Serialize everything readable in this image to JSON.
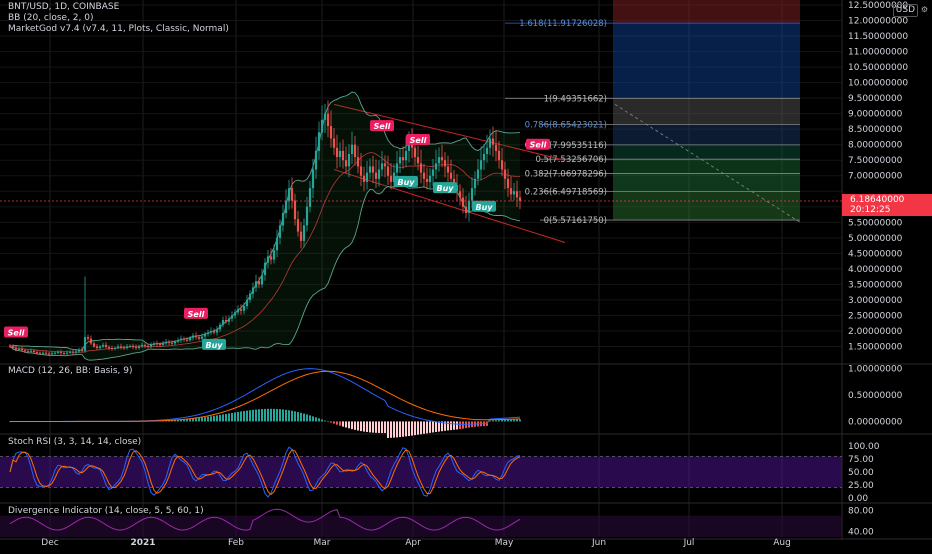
{
  "header": {
    "symbol_line": "BNT/USD, 1D, COINBASE",
    "bb_line": "BB (20, close, 2, 0)",
    "marketgod_line": "MarketGod v7.4 (v7.4, 11, Plots, Classic, Normal)",
    "currency": "USD"
  },
  "panes": {
    "macd_label": "MACD (12, 26, BB: Basis, 9)",
    "stoch_label": "Stoch RSI (3, 3, 14, 14, close)",
    "div_label": "Divergence Indicator (14, close, 5, 5, 60, 1)"
  },
  "colors": {
    "up": "#26a69a",
    "down": "#ef5350",
    "bb": "#5aa58c",
    "signal_sell": "#e91e63",
    "signal_buy": "#26a69a",
    "macd_line": "#2962ff",
    "signal_line": "#ff6d00",
    "stoch_k": "#2962ff",
    "stoch_d": "#ff6d00",
    "stoch_band": "#4a148c",
    "div_line": "#9c27b0",
    "current_price": "#f23645"
  },
  "chart_data": {
    "type": "candlestick",
    "title": "BNT/USD, 1D, COINBASE",
    "x_tick_labels": [
      "Dec",
      "2021",
      "Feb",
      "Mar",
      "Apr",
      "May",
      "Jun",
      "Jul",
      "Aug"
    ],
    "price_axis": {
      "ylim": [
        1.0,
        12.5
      ],
      "tick_labels": [
        "12.50000000",
        "12.00000000",
        "11.50000000",
        "11.00000000",
        "10.50000000",
        "10.00000000",
        "9.50000000",
        "9.00000000",
        "8.50000000",
        "8.00000000",
        "7.50000000",
        "7.00000000",
        "6.50000000",
        "6.00000000",
        "5.50000000",
        "5.00000000",
        "4.50000000",
        "4.00000000",
        "3.50000000",
        "3.00000000",
        "2.50000000",
        "2.00000000",
        "1.50000000"
      ]
    },
    "current_price": "6.18640000",
    "countdown": "20:12:25",
    "closes": [
      1.5,
      1.45,
      1.4,
      1.42,
      1.38,
      1.35,
      1.33,
      1.36,
      1.32,
      1.3,
      1.28,
      1.3,
      1.27,
      1.25,
      1.28,
      1.3,
      1.32,
      1.29,
      1.27,
      1.3,
      1.33,
      1.3,
      1.34,
      1.4,
      1.36,
      1.8,
      1.75,
      1.6,
      1.5,
      1.45,
      1.5,
      1.55,
      1.48,
      1.45,
      1.42,
      1.45,
      1.5,
      1.47,
      1.45,
      1.5,
      1.52,
      1.48,
      1.45,
      1.5,
      1.55,
      1.52,
      1.5,
      1.55,
      1.6,
      1.58,
      1.55,
      1.6,
      1.65,
      1.62,
      1.6,
      1.65,
      1.7,
      1.75,
      1.72,
      1.7,
      1.78,
      1.85,
      1.8,
      1.75,
      1.82,
      1.9,
      1.95,
      2.0,
      1.95,
      2.05,
      2.2,
      2.35,
      2.3,
      2.4,
      2.5,
      2.6,
      2.7,
      2.65,
      2.8,
      3.0,
      3.2,
      3.4,
      3.6,
      3.5,
      3.8,
      4.2,
      4.4,
      4.3,
      4.6,
      5.0,
      5.4,
      5.8,
      6.2,
      6.6,
      6.2,
      5.6,
      5.2,
      4.9,
      5.4,
      6.0,
      6.6,
      7.2,
      7.8,
      8.4,
      8.8,
      9.0,
      8.6,
      8.2,
      7.9,
      7.6,
      7.8,
      7.5,
      7.3,
      7.7,
      8.0,
      7.6,
      7.3,
      7.0,
      6.8,
      7.1,
      7.3,
      7.1,
      6.9,
      7.2,
      7.4,
      7.3,
      7.0,
      6.8,
      7.1,
      7.4,
      7.6,
      7.5,
      7.8,
      8.1,
      7.9,
      7.6,
      7.4,
      7.1,
      6.9,
      6.8,
      7.0,
      7.2,
      7.4,
      7.6,
      7.5,
      7.3,
      7.1,
      6.9,
      6.7,
      6.5,
      6.3,
      6.0,
      5.8,
      6.2,
      6.6,
      6.9,
      7.2,
      7.5,
      7.7,
      7.9,
      8.2,
      8.0,
      7.8,
      7.5,
      7.2,
      6.9,
      6.6,
      6.4,
      6.5,
      6.3,
      6.19
    ],
    "signals": [
      {
        "label": "Sell",
        "type": "sell",
        "index": 2,
        "price": 1.95
      },
      {
        "label": "Sell",
        "type": "sell",
        "index": 62,
        "price": 2.55
      },
      {
        "label": "Buy",
        "type": "buy",
        "index": 68,
        "price": 1.55
      },
      {
        "label": "Sell",
        "type": "sell",
        "index": 124,
        "price": 8.6
      },
      {
        "label": "Buy",
        "type": "buy",
        "index": 132,
        "price": 6.8
      },
      {
        "label": "Sell",
        "type": "sell",
        "index": 136,
        "price": 8.15
      },
      {
        "label": "Buy",
        "type": "buy",
        "index": 145,
        "price": 6.6
      },
      {
        "label": "Buy",
        "type": "buy",
        "index": 158,
        "price": 6.0
      },
      {
        "label": "Sell",
        "type": "sell",
        "index": 176,
        "price": 8.0
      }
    ],
    "fib_levels": [
      {
        "label": "1.618(11.91726028)",
        "value": 11.917
      },
      {
        "label": "1(9.49351662)",
        "value": 9.494
      },
      {
        "label": "0.786(8.65423021)",
        "value": 8.654
      },
      {
        "label": "0.618(7.99535116)",
        "value": 7.995
      },
      {
        "label": "0.5(7.53256706)",
        "value": 7.533
      },
      {
        "label": "0.382(7.06978296)",
        "value": 7.07
      },
      {
        "label": "0.236(6.49718569)",
        "value": 6.497
      },
      {
        "label": "0(5.57161750)",
        "value": 5.572
      }
    ],
    "macd_axis": {
      "ylim": [
        -0.2,
        1.05
      ],
      "tick_labels": [
        "1.00000000",
        "0.50000000",
        "0.00000000"
      ]
    },
    "stoch_axis": {
      "ylim": [
        0,
        100
      ],
      "tick_labels": [
        "100.00",
        "75.00",
        "50.00",
        "25.00",
        "0.00"
      ]
    },
    "div_axis": {
      "ylim": [
        30,
        90
      ],
      "tick_labels": [
        "80.00",
        "40.00"
      ]
    }
  }
}
